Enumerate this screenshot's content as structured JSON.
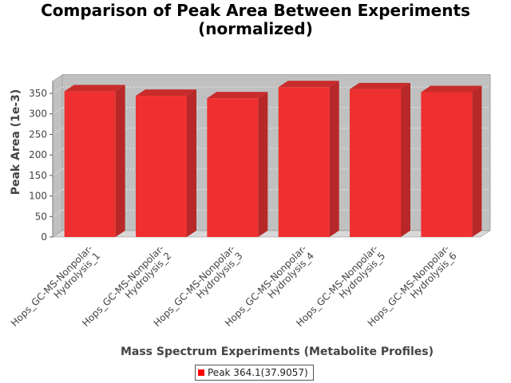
{
  "title_lines": [
    "Comparison of Peak Area Between Experiments",
    "(normalized)"
  ],
  "colors": {
    "bar_front": "#f03030",
    "bar_top": "#c92b2b",
    "bar_side": "#b82828",
    "plot_back": "#c0c0c0",
    "plot_floor": "#d8d8d8",
    "legend_swatch": "#ff0000"
  },
  "legend": {
    "label": "Peak 364.1(37.9057)"
  },
  "chart_data": {
    "type": "bar",
    "style": "3d",
    "title": "Comparison of Peak Area Between Experiments (normalized)",
    "xlabel": "Mass Spectrum Experiments (Metabolite Profiles)",
    "ylabel": "Peak Area (1e-3)",
    "ylim": [
      0,
      380
    ],
    "yticks": [
      0,
      50,
      100,
      150,
      200,
      250,
      300,
      350
    ],
    "grid": true,
    "legend_position": "bottom",
    "categories": [
      [
        "Hops_GC-MS-Nonpolar-",
        "Hydrolysis_1"
      ],
      [
        "Hops_GC-MS-Nonpolar-",
        "Hydrolysis_2"
      ],
      [
        "Hops_GC-MS-Nonpolar-",
        "Hydrolysis_3"
      ],
      [
        "Hops_GC-MS-Nonpolar-",
        "Hydrolysis_4"
      ],
      [
        "Hops_GC-MS-Nonpolar-",
        "Hydrolysis_5"
      ],
      [
        "Hops_GC-MS-Nonpolar-",
        "Hydrolysis_6"
      ]
    ],
    "series": [
      {
        "name": "Peak 364.1(37.9057)",
        "values": [
          355,
          344,
          338,
          365,
          360,
          353
        ]
      }
    ]
  }
}
